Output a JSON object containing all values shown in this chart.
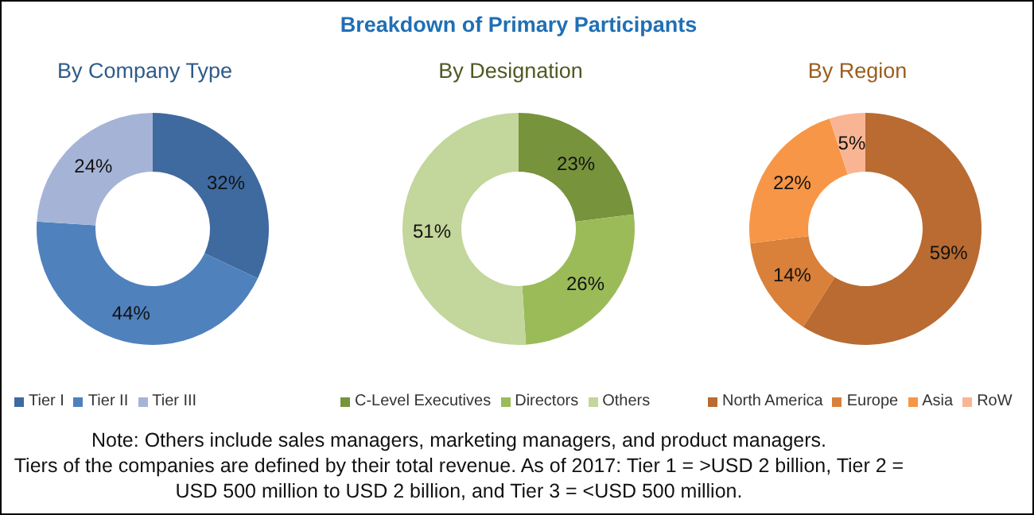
{
  "chart_data": [
    {
      "type": "other",
      "title": "Breakdown of Primary Participants"
    },
    {
      "type": "donut",
      "title": "By Company Type",
      "categories": [
        "Tier I",
        "Tier II",
        "Tier III"
      ],
      "values": [
        32,
        44,
        24
      ],
      "value_labels": [
        "32%",
        "44%",
        "24%"
      ],
      "colors": [
        "#3f6aa0",
        "#4f81bd",
        "#a5b4d6"
      ],
      "legend": "bottom"
    },
    {
      "type": "donut",
      "title": "By Designation",
      "categories": [
        "C-Level Executives",
        "Directors",
        "Others"
      ],
      "values": [
        23,
        26,
        51
      ],
      "value_labels": [
        "23%",
        "26%",
        "51%"
      ],
      "colors": [
        "#77933c",
        "#9bbb59",
        "#c3d69b"
      ],
      "legend": "bottom"
    },
    {
      "type": "donut",
      "title": "By Region",
      "categories": [
        "North America",
        "Europe",
        "Asia",
        "RoW"
      ],
      "values": [
        59,
        14,
        22,
        5
      ],
      "value_labels": [
        "59%",
        "14%",
        "22%",
        "5%"
      ],
      "colors": [
        "#b96b31",
        "#d9803a",
        "#f79646",
        "#f9b593"
      ],
      "legend": "bottom"
    },
    {
      "type": "other",
      "annotations": [
        "Note: Others include sales managers, marketing managers, and product managers.",
        "Tiers of the companies are defined by their total revenue. As of 2017: Tier 1 = >USD 2 billion, Tier 2 = USD 500 million to USD 2 billion, and Tier 3 = <USD 500 million."
      ]
    }
  ]
}
